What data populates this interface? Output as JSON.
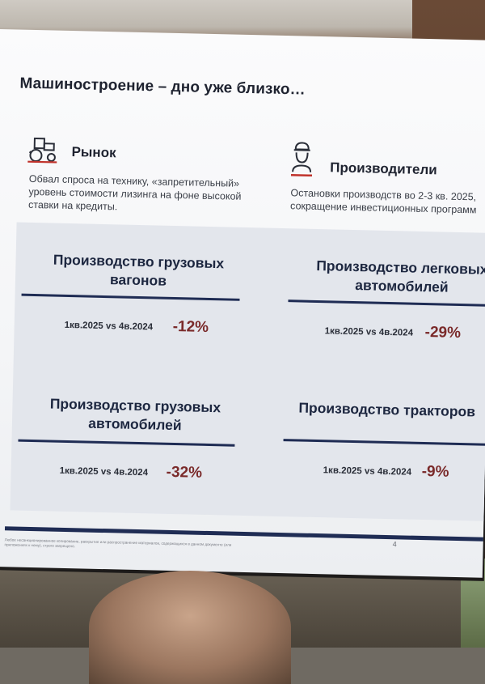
{
  "slide": {
    "title": "Машиностроение – дно уже близко…",
    "market": {
      "heading": "Рынок",
      "icon": "tractor-icon",
      "text": "Обвал спроса на технику, «запретительный» уровень стоимости лизинга на фоне высокой ставки на кредиты."
    },
    "producers": {
      "heading": "Производители",
      "icon": "worker-icon",
      "text": "Остановки производств во 2-3 кв. 2025, сокращение инвестиционных программ"
    },
    "cards": [
      {
        "title_line1": "Производство грузовых",
        "title_line2": "вагонов",
        "comparison": "1кв.2025 vs 4в.2024",
        "change": "-12%"
      },
      {
        "title_line1": "Производство легковых",
        "title_line2": "автомобилей",
        "comparison": "1кв.2025 vs 4в.2024",
        "change": "-29%"
      },
      {
        "title_line1": "Производство грузовых",
        "title_line2": "автомобилей",
        "comparison": "1кв.2025 vs 4в.2024",
        "change": "-32%"
      },
      {
        "title_line1": "Производство тракторов",
        "title_line2": "",
        "comparison": "1кв.2025 vs 4в.2024",
        "change": "-9%"
      }
    ],
    "page_number": "4",
    "disclaimer": "Любое несанкционированное копирование, раскрытие или распространение материалов, содержащихся в данном документе (или приложениях к нему), строго запрещено.",
    "colors": {
      "accent": "#1f2c54",
      "negative": "#7a2a2a",
      "icon_red": "#c0322b"
    }
  }
}
